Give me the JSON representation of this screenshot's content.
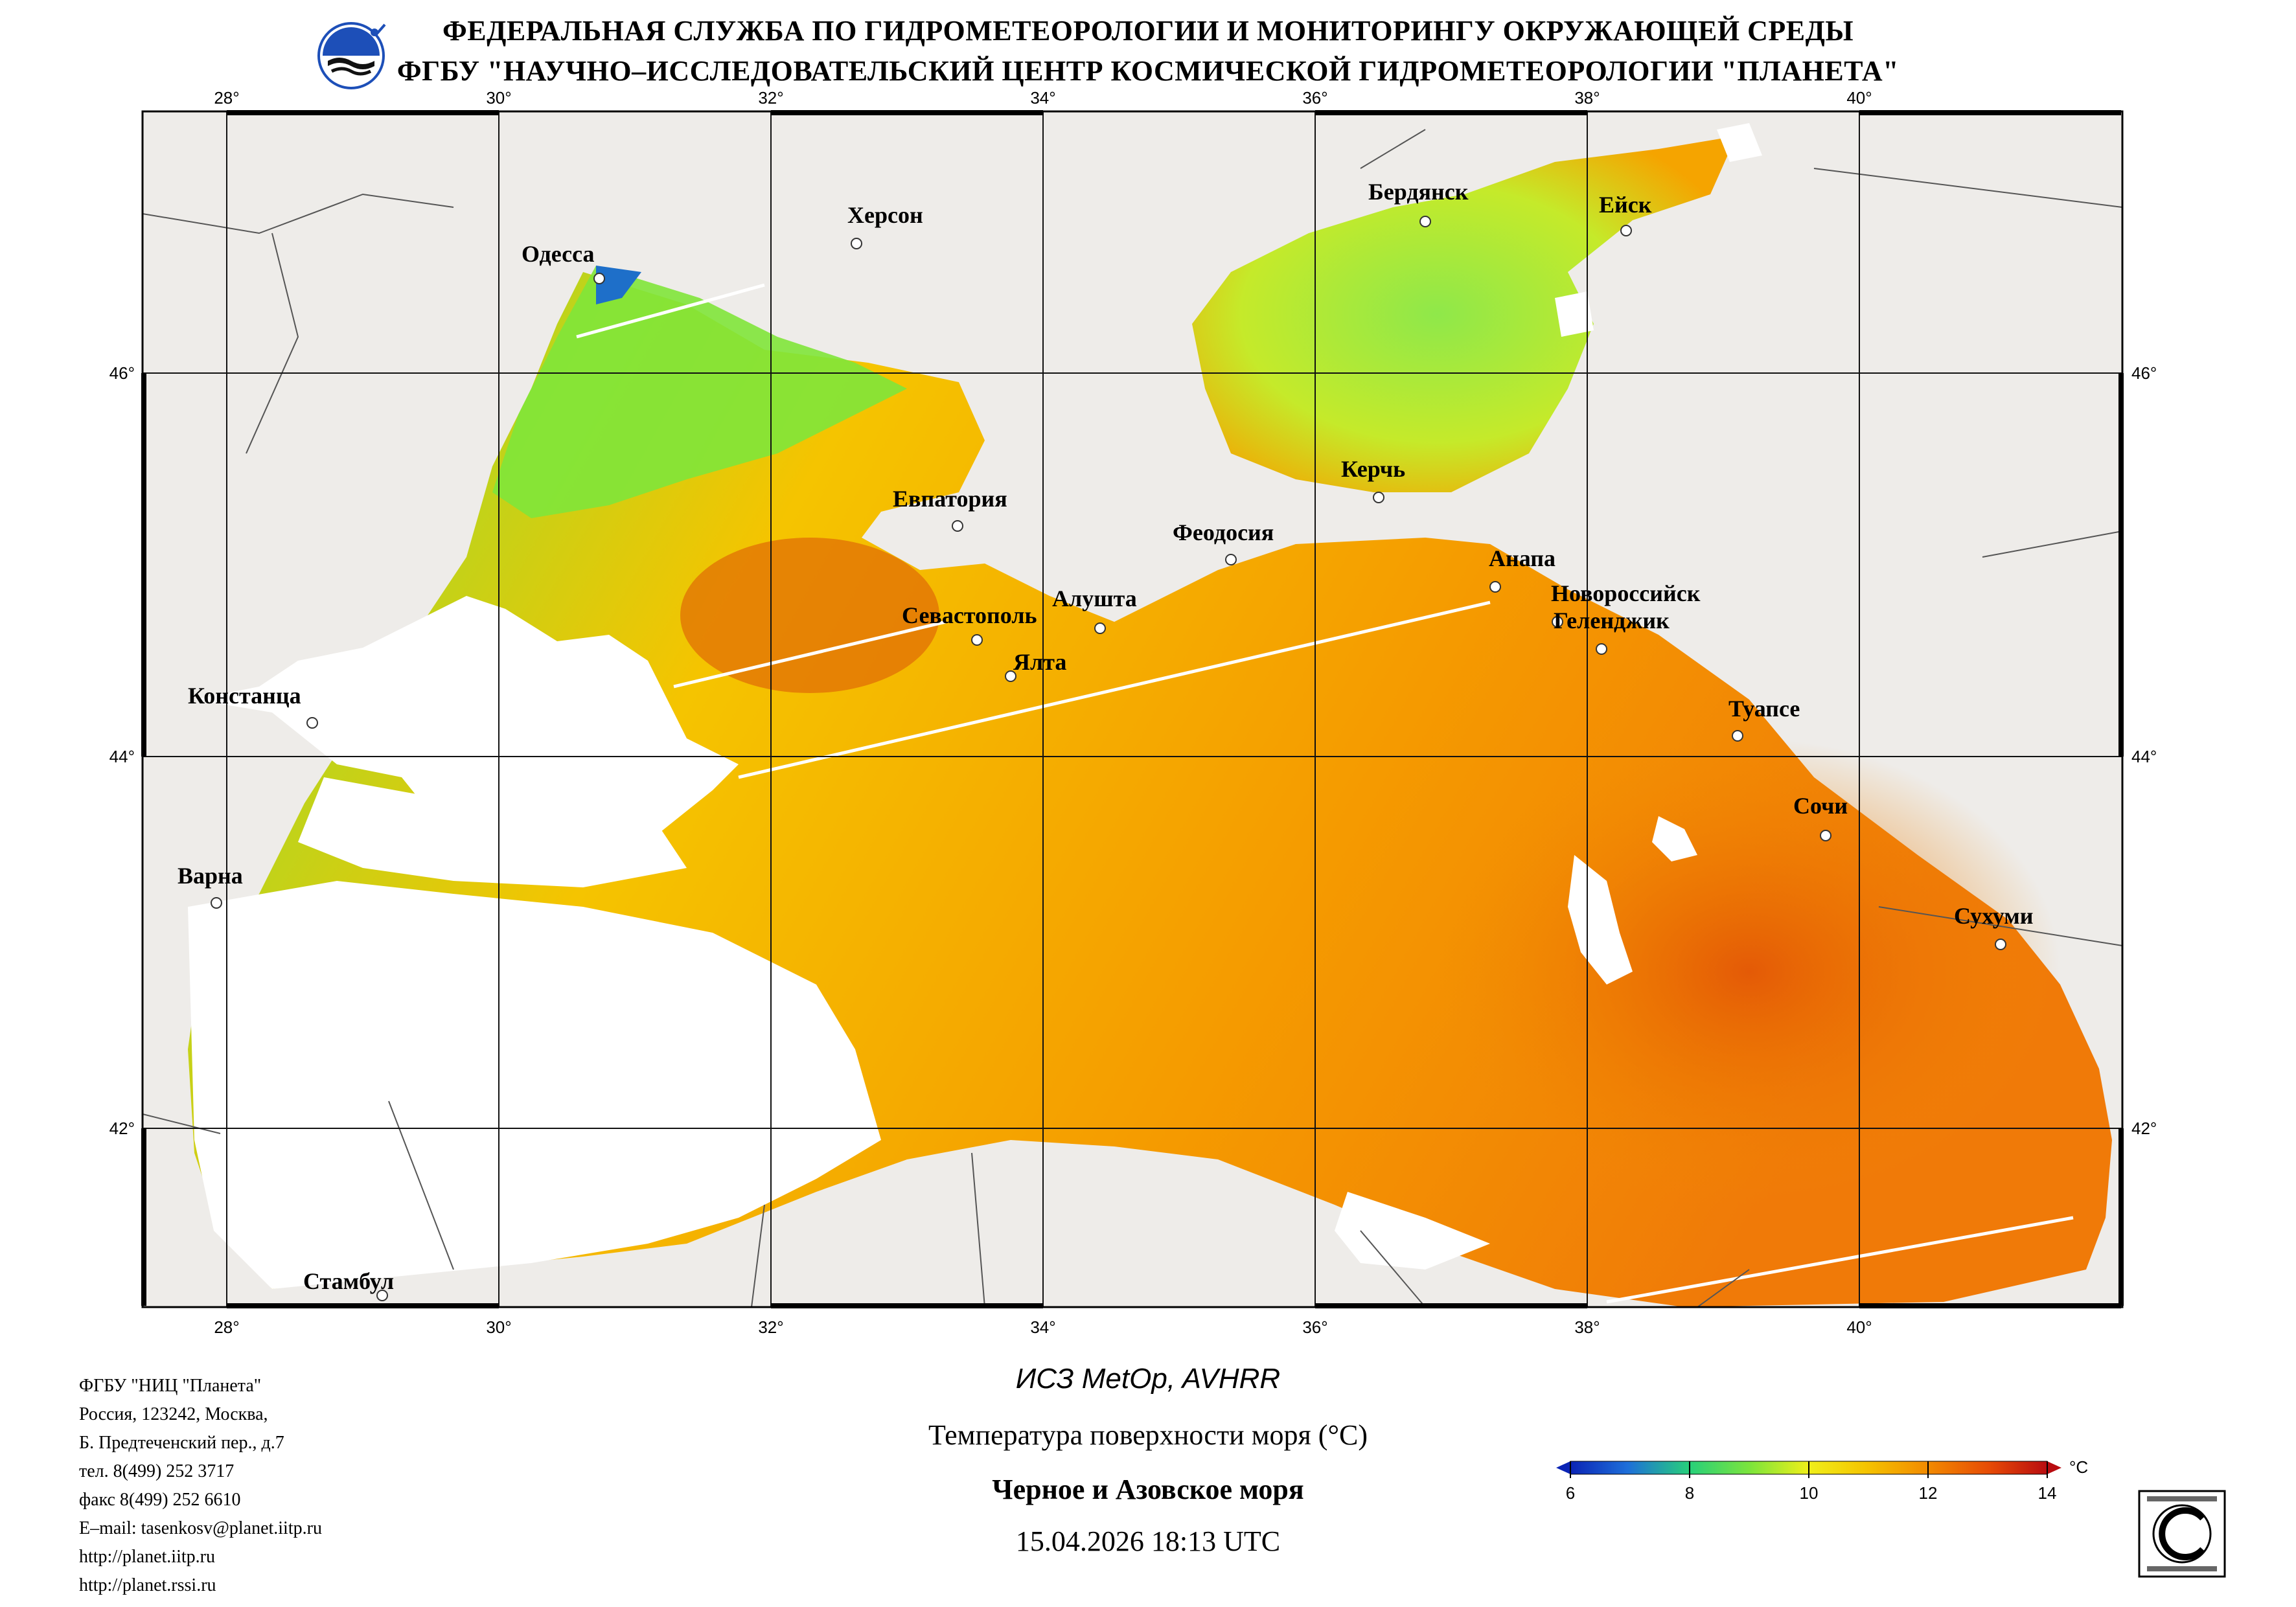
{
  "header": {
    "line1": "ФЕДЕРАЛЬНАЯ СЛУЖБА ПО ГИДРОМЕТЕОРОЛОГИИ И МОНИТОРИНГУ ОКРУЖАЮЩЕЙ СРЕДЫ",
    "line2": "ФГБУ \"НАУЧНО–ИССЛЕДОВАТЕЛЬСКИЙ ЦЕНТР КОСМИЧЕСКОЙ ГИДРОМЕТЕОРОЛОГИИ \"ПЛАНЕТА\""
  },
  "map": {
    "lon_labels": [
      "28°",
      "30°",
      "32°",
      "34°",
      "36°",
      "38°",
      "40°"
    ],
    "lat_labels": [
      "46°",
      "44°",
      "42°"
    ],
    "cities": [
      {
        "name": "Одесса"
      },
      {
        "name": "Херсон"
      },
      {
        "name": "Бердянск"
      },
      {
        "name": "Ейск"
      },
      {
        "name": "Евпатория"
      },
      {
        "name": "Керчь"
      },
      {
        "name": "Феодосия"
      },
      {
        "name": "Анапа"
      },
      {
        "name": "Новороссийск"
      },
      {
        "name": "Геленджик"
      },
      {
        "name": "Севастополь"
      },
      {
        "name": "Алушта"
      },
      {
        "name": "Ялта"
      },
      {
        "name": "Констанца"
      },
      {
        "name": "Туапсе"
      },
      {
        "name": "Сочи"
      },
      {
        "name": "Варна"
      },
      {
        "name": "Сухуми"
      },
      {
        "name": "Стамбул"
      }
    ],
    "colors": {
      "land": "#eeece9",
      "cloud": "#ffffff",
      "sst_cold": "#0b24b5",
      "sst_mid": "#7fe53a",
      "sst_warm": "#f5b300",
      "sst_hot": "#c2100c"
    }
  },
  "footer": {
    "org_lines": [
      "ФГБУ \"НИЦ \"Планета\"",
      "Россия, 123242, Москва,",
      "Б. Предтеченский пер., д.7",
      "тел. 8(499) 252 3717",
      "факс 8(499) 252 6610",
      "E–mail: tasenkosv@planet.iitp.ru",
      "http://planet.iitp.ru",
      "http://planet.rssi.ru"
    ],
    "satellite": "ИСЗ MetOp, AVHRR",
    "product": "Температура поверхности моря (°C)",
    "region": "Черное и Азовское моря",
    "datetime": "15.04.2026 18:13 UTC"
  },
  "colorbar": {
    "unit": "°C",
    "min": 6,
    "max": 14,
    "ticks": [
      "6",
      "8",
      "10",
      "12",
      "14"
    ]
  }
}
